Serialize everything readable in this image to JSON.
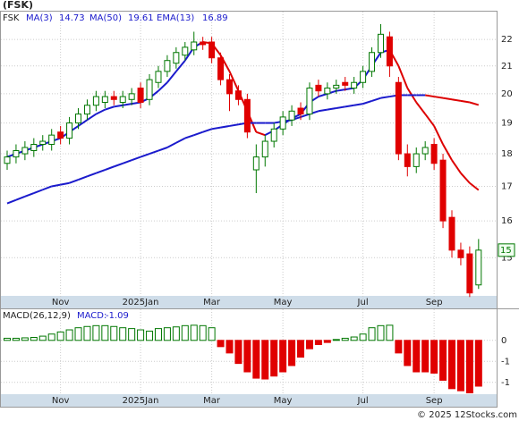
{
  "title": "(FSK)",
  "watermark": "© 2025 12Stocks.com",
  "chart_data": [
    {
      "type": "candlestick",
      "symbol": "FSK",
      "legend_items": [
        {
          "name": "MA(3)",
          "value": 14.73
        },
        {
          "name": "MA(50)",
          "value": 19.61
        },
        {
          "name": "EMA(13)",
          "value": 16.89
        }
      ],
      "categories": [
        null,
        null,
        null,
        null,
        null,
        null,
        "Nov",
        null,
        null,
        null,
        null,
        null,
        null,
        null,
        null,
        "2025Jan",
        null,
        null,
        null,
        null,
        null,
        null,
        null,
        "Mar",
        null,
        null,
        null,
        null,
        null,
        null,
        null,
        "May",
        null,
        null,
        null,
        null,
        null,
        null,
        null,
        null,
        "Jul",
        null,
        null,
        null,
        null,
        null,
        null,
        null,
        "Sep",
        null,
        null,
        null,
        null,
        null
      ],
      "open": [
        17.7,
        17.9,
        18.0,
        18.1,
        18.3,
        18.3,
        18.7,
        18.5,
        19.0,
        19.3,
        19.6,
        19.7,
        19.9,
        19.7,
        19.8,
        20.2,
        19.8,
        20.4,
        20.8,
        21.1,
        21.4,
        21.6,
        21.9,
        21.9,
        21.3,
        20.5,
        20.1,
        19.8,
        17.5,
        17.9,
        18.4,
        18.8,
        19.1,
        19.5,
        19.3,
        20.3,
        20.0,
        20.2,
        20.4,
        20.2,
        20.4,
        20.8,
        21.5,
        22.1,
        20.4,
        18.0,
        17.6,
        18.0,
        18.3,
        17.8,
        16.1,
        15.2,
        15.1,
        14.3
      ],
      "high": [
        18.1,
        18.3,
        18.4,
        18.5,
        18.6,
        18.8,
        18.9,
        19.2,
        19.5,
        19.8,
        20.1,
        20.1,
        20.1,
        20.1,
        20.2,
        20.4,
        20.7,
        21.0,
        21.4,
        21.7,
        21.9,
        22.3,
        22.1,
        22.1,
        21.5,
        20.7,
        20.3,
        20.0,
        18.3,
        18.6,
        19.0,
        19.4,
        19.6,
        19.7,
        20.4,
        20.5,
        20.4,
        20.5,
        20.6,
        20.6,
        21.0,
        21.7,
        22.6,
        22.3,
        20.6,
        18.3,
        18.2,
        18.4,
        18.5,
        18.0,
        16.3,
        15.4,
        15.3,
        15.5
      ],
      "low": [
        17.5,
        17.7,
        17.8,
        17.9,
        18.1,
        18.1,
        18.3,
        18.3,
        18.8,
        19.1,
        19.4,
        19.5,
        19.6,
        19.5,
        19.6,
        19.5,
        19.6,
        20.2,
        20.6,
        20.9,
        21.2,
        21.4,
        21.6,
        21.1,
        20.3,
        19.4,
        19.6,
        18.5,
        16.8,
        17.6,
        18.2,
        18.6,
        18.9,
        19.1,
        19.1,
        19.9,
        19.8,
        20.0,
        20.1,
        20.0,
        20.2,
        20.6,
        21.3,
        20.6,
        17.8,
        17.3,
        17.4,
        17.8,
        17.5,
        15.8,
        15.0,
        14.8,
        14.0,
        14.2
      ],
      "close": [
        17.9,
        18.1,
        18.2,
        18.3,
        18.4,
        18.6,
        18.5,
        19.0,
        19.3,
        19.6,
        19.9,
        19.9,
        19.8,
        19.9,
        20.0,
        19.7,
        20.5,
        20.8,
        21.2,
        21.5,
        21.7,
        21.9,
        21.8,
        21.3,
        20.5,
        20.0,
        19.8,
        18.7,
        17.9,
        18.4,
        18.8,
        19.2,
        19.4,
        19.3,
        20.2,
        20.1,
        20.2,
        20.3,
        20.3,
        20.4,
        20.8,
        21.5,
        22.2,
        21.0,
        18.0,
        17.6,
        18.0,
        18.2,
        17.7,
        16.0,
        15.2,
        15.0,
        14.1,
        15.2
      ],
      "up_color": "#007700",
      "down_color": "#e00000",
      "series": [
        {
          "color": "#1a1acc",
          "falling_color": "#dd0000",
          "values": [
            17.9,
            18.0,
            18.1,
            18.2,
            18.3,
            18.4,
            18.5,
            18.7,
            18.9,
            19.1,
            19.3,
            19.45,
            19.55,
            19.6,
            19.65,
            19.7,
            19.85,
            20.1,
            20.4,
            20.8,
            21.2,
            21.7,
            21.9,
            21.85,
            21.4,
            20.8,
            20.1,
            19.4,
            18.7,
            18.6,
            18.75,
            18.95,
            19.15,
            19.3,
            19.7,
            19.9,
            20.0,
            20.1,
            20.15,
            20.2,
            20.5,
            21.0,
            21.5,
            21.6,
            21.0,
            20.2,
            19.7,
            19.3,
            18.9,
            18.3,
            17.8,
            17.4,
            17.1,
            16.89
          ]
        },
        {
          "color": "#1a1acc",
          "falling_color": "#dd0000",
          "values": [
            16.5,
            16.6,
            16.7,
            16.8,
            16.9,
            17.0,
            17.05,
            17.1,
            17.2,
            17.3,
            17.4,
            17.5,
            17.6,
            17.7,
            17.8,
            17.9,
            18.0,
            18.1,
            18.2,
            18.35,
            18.5,
            18.6,
            18.7,
            18.8,
            18.85,
            18.9,
            18.95,
            19.0,
            19.0,
            19.0,
            19.0,
            19.05,
            19.1,
            19.2,
            19.3,
            19.4,
            19.45,
            19.5,
            19.55,
            19.6,
            19.65,
            19.75,
            19.85,
            19.9,
            19.95,
            19.95,
            19.95,
            19.95,
            19.9,
            19.85,
            19.8,
            19.75,
            19.7,
            19.61
          ]
        }
      ],
      "log_scale": true,
      "ylim": [
        14.05,
        23.1
      ],
      "yticks": [
        15,
        16,
        17,
        18,
        19,
        20,
        21,
        22
      ],
      "grid": true,
      "last_price": {
        "value": 15.2,
        "label": "15"
      }
    },
    {
      "type": "bar",
      "title": "MACD(26,12,9)",
      "value_title": "MACD:",
      "value": -1.09,
      "categories": [
        null,
        null,
        null,
        null,
        null,
        null,
        "Nov",
        null,
        null,
        null,
        null,
        null,
        null,
        null,
        null,
        "2025Jan",
        null,
        null,
        null,
        null,
        null,
        null,
        null,
        "Mar",
        null,
        null,
        null,
        null,
        null,
        null,
        null,
        "May",
        null,
        null,
        null,
        null,
        null,
        null,
        null,
        null,
        "Jul",
        null,
        null,
        null,
        null,
        null,
        null,
        null,
        "Sep",
        null,
        null,
        null,
        null,
        null
      ],
      "values": [
        0.05,
        0.05,
        0.06,
        0.07,
        0.1,
        0.15,
        0.2,
        0.25,
        0.3,
        0.33,
        0.35,
        0.35,
        0.33,
        0.3,
        0.28,
        0.25,
        0.22,
        0.28,
        0.3,
        0.32,
        0.35,
        0.36,
        0.35,
        0.3,
        -0.15,
        -0.3,
        -0.55,
        -0.75,
        -0.9,
        -0.92,
        -0.85,
        -0.75,
        -0.6,
        -0.4,
        -0.2,
        -0.1,
        -0.05,
        0.02,
        0.05,
        0.08,
        0.15,
        0.3,
        0.35,
        0.36,
        -0.3,
        -0.6,
        -0.75,
        -0.75,
        -0.78,
        -0.95,
        -1.15,
        -1.2,
        -1.25,
        -1.09
      ],
      "pos_color": "#007700",
      "neg_color": "#e00000",
      "ylim": [
        -1.26,
        0.74
      ],
      "yticks": [
        0,
        {
          "value": -0.5,
          "label": "-1"
        },
        {
          "value": -1,
          "label": "-1"
        }
      ],
      "grid": true
    }
  ]
}
